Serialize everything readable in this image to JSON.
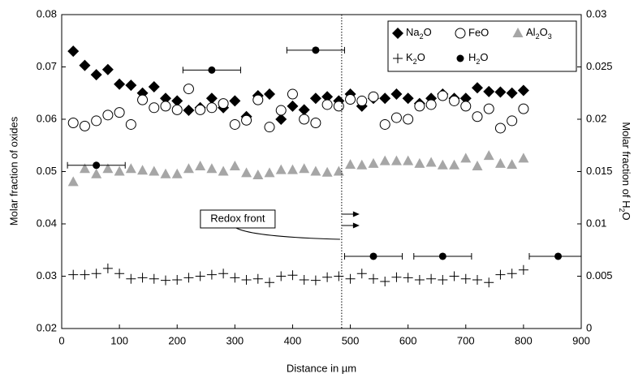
{
  "chart_data": {
    "type": "scatter",
    "xlabel": "Distance in µm",
    "ylabel": "Molar fraction of oxides",
    "y2label": "Molar fraction of H2O",
    "xlim": [
      0,
      900
    ],
    "xticks": [
      0,
      100,
      200,
      300,
      400,
      500,
      600,
      700,
      800,
      900
    ],
    "ylim": [
      0.02,
      0.08
    ],
    "yticks": [
      0.02,
      0.03,
      0.04,
      0.05,
      0.06,
      0.07,
      0.08
    ],
    "y2lim": [
      0,
      0.03
    ],
    "y2ticks": [
      0,
      0.005,
      0.01,
      0.015,
      0.02,
      0.025,
      0.03
    ],
    "x": [
      20,
      40,
      60,
      80,
      100,
      120,
      140,
      160,
      180,
      200,
      220,
      240,
      260,
      280,
      300,
      320,
      340,
      360,
      380,
      400,
      420,
      440,
      460,
      480,
      500,
      520,
      540,
      560,
      580,
      600,
      620,
      640,
      660,
      680,
      700,
      720,
      740,
      760,
      780,
      800
    ],
    "series": [
      {
        "name": "Na2O",
        "marker": "diamond",
        "color": "#000000",
        "values": [
          0.073,
          0.0703,
          0.0685,
          0.0695,
          0.0667,
          0.0665,
          0.065,
          0.0662,
          0.064,
          0.0635,
          0.0617,
          0.0622,
          0.064,
          0.0622,
          0.0635,
          0.0605,
          0.0645,
          0.0648,
          0.06,
          0.0625,
          0.0618,
          0.064,
          0.0643,
          0.0635,
          0.0648,
          0.0625,
          0.064,
          0.064,
          0.0648,
          0.064,
          0.063,
          0.064,
          0.0648,
          0.064,
          0.064,
          0.066,
          0.0653,
          0.0652,
          0.065,
          0.0655
        ]
      },
      {
        "name": "FeO",
        "marker": "open-circle",
        "color": "#000000",
        "values": [
          0.0593,
          0.0587,
          0.0597,
          0.0608,
          0.0613,
          0.059,
          0.0637,
          0.0622,
          0.0625,
          0.0618,
          0.0658,
          0.0618,
          0.0622,
          0.063,
          0.059,
          0.0598,
          0.0637,
          0.0585,
          0.0617,
          0.0648,
          0.06,
          0.0593,
          0.0628,
          0.0625,
          0.0638,
          0.0635,
          0.0643,
          0.059,
          0.0603,
          0.06,
          0.0625,
          0.0628,
          0.0645,
          0.0635,
          0.0625,
          0.0605,
          0.062,
          0.0583,
          0.0597,
          0.062
        ]
      },
      {
        "name": "Al2O3",
        "marker": "triangle",
        "color": "#a6a6a6",
        "values": [
          0.048,
          0.0505,
          0.0495,
          0.0505,
          0.05,
          0.0505,
          0.0502,
          0.05,
          0.0495,
          0.0495,
          0.0505,
          0.051,
          0.0505,
          0.05,
          0.051,
          0.0497,
          0.0493,
          0.0497,
          0.0503,
          0.0503,
          0.0505,
          0.05,
          0.0498,
          0.05,
          0.0513,
          0.0512,
          0.0515,
          0.052,
          0.052,
          0.052,
          0.0515,
          0.0517,
          0.0512,
          0.0512,
          0.0525,
          0.051,
          0.053,
          0.0515,
          0.0513,
          0.0525
        ]
      },
      {
        "name": "K2O",
        "marker": "plus",
        "color": "#000000",
        "values": [
          0.0303,
          0.0303,
          0.0305,
          0.0315,
          0.0305,
          0.0295,
          0.0297,
          0.0295,
          0.0292,
          0.0293,
          0.0297,
          0.03,
          0.0303,
          0.0305,
          0.0297,
          0.0293,
          0.0295,
          0.0288,
          0.03,
          0.0302,
          0.0293,
          0.0292,
          0.0298,
          0.03,
          0.0295,
          0.0305,
          0.0295,
          0.029,
          0.0298,
          0.0297,
          0.0293,
          0.0295,
          0.0293,
          0.03,
          0.0295,
          0.0293,
          0.0288,
          0.0303,
          0.0305,
          0.0312
        ]
      },
      {
        "name": "H2O",
        "marker": "dot",
        "color": "#000000",
        "axis": "y2",
        "x": [
          60,
          260,
          440,
          540,
          660,
          860
        ],
        "values": [
          0.0156,
          0.0247,
          0.0266,
          0.0069,
          0.0069,
          0.0069
        ],
        "xerr": [
          50,
          50,
          50,
          50,
          50,
          50
        ]
      }
    ],
    "annotation": {
      "text": "Redox front",
      "x": 485
    }
  }
}
